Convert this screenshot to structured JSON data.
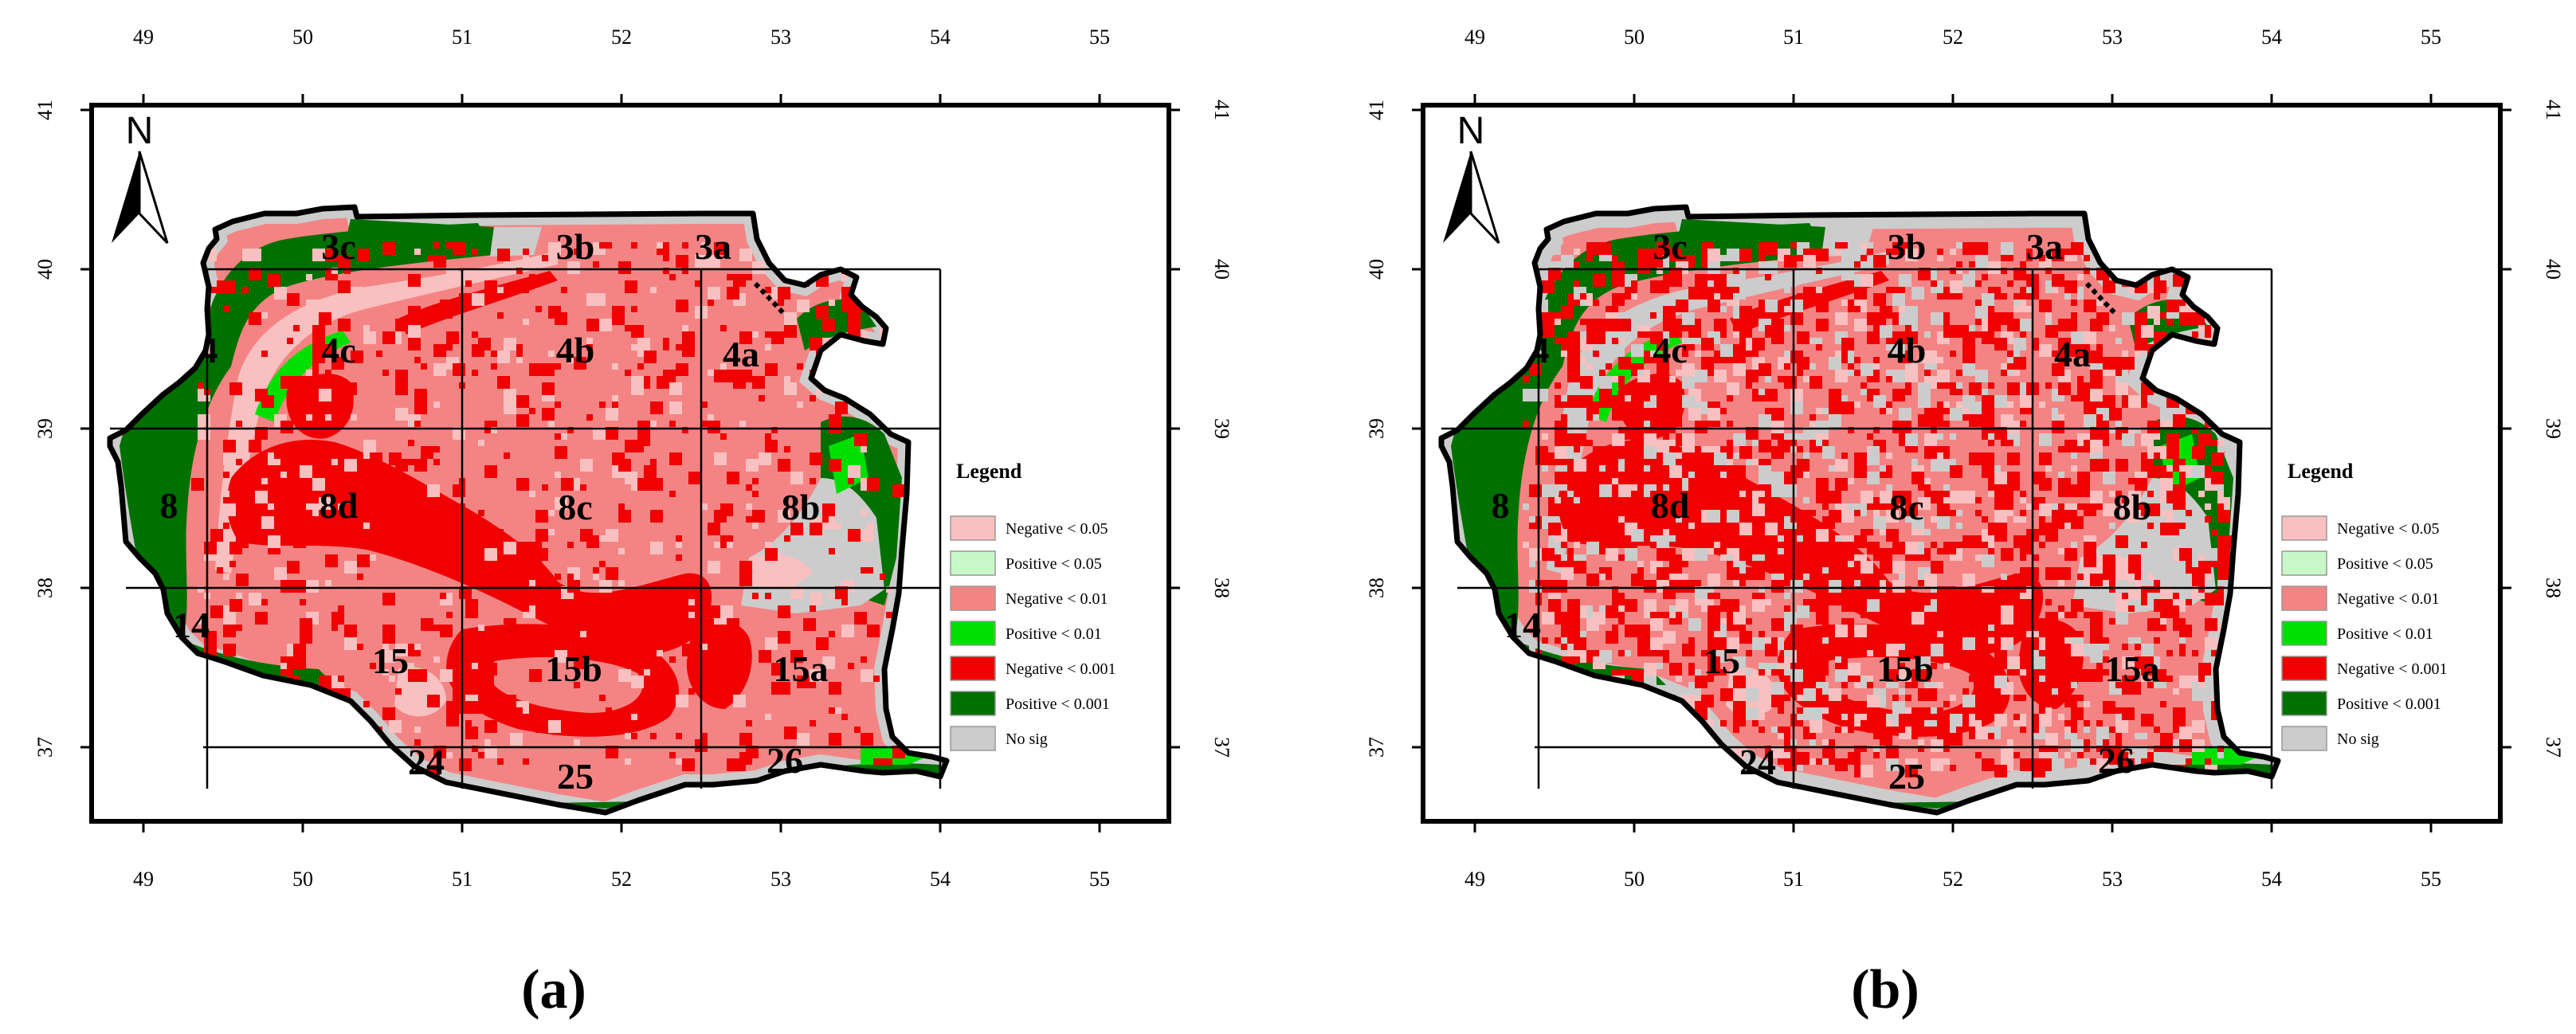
{
  "maps": [
    {
      "caption": "(a)",
      "variant": "a",
      "grid_labels": [
        "3c",
        "3b",
        "3a",
        "4",
        "4c",
        "4b",
        "4a",
        "8",
        "8d",
        "8c",
        "8b",
        "14",
        "15",
        "15b",
        "15a",
        "24",
        "25",
        "26"
      ],
      "north_label": "N"
    },
    {
      "caption": "(b)",
      "variant": "b",
      "grid_labels": [
        "3c",
        "3b",
        "3a",
        "4",
        "4c",
        "4b",
        "4a",
        "8",
        "8d",
        "8c",
        "8b",
        "14",
        "15",
        "15b",
        "15a",
        "24",
        "25",
        "26"
      ],
      "north_label": "N"
    }
  ],
  "axes": {
    "x_ticks": [
      "49",
      "50",
      "51",
      "52",
      "53",
      "54",
      "55"
    ],
    "y_ticks": [
      "41",
      "40",
      "39",
      "38",
      "37"
    ]
  },
  "legend": {
    "title": "Legend",
    "items": [
      {
        "label": "Negative < 0.05",
        "color": "#f8c0c0"
      },
      {
        "label": "Positive < 0.05",
        "color": "#c8f8c8"
      },
      {
        "label": "Negative < 0.01",
        "color": "#f48484"
      },
      {
        "label": "Positive < 0.01",
        "color": "#00e000"
      },
      {
        "label": "Negative < 0.001",
        "color": "#f00000"
      },
      {
        "label": "Positive < 0.001",
        "color": "#007000"
      },
      {
        "label": "No sig",
        "color": "#cccccc"
      }
    ]
  }
}
